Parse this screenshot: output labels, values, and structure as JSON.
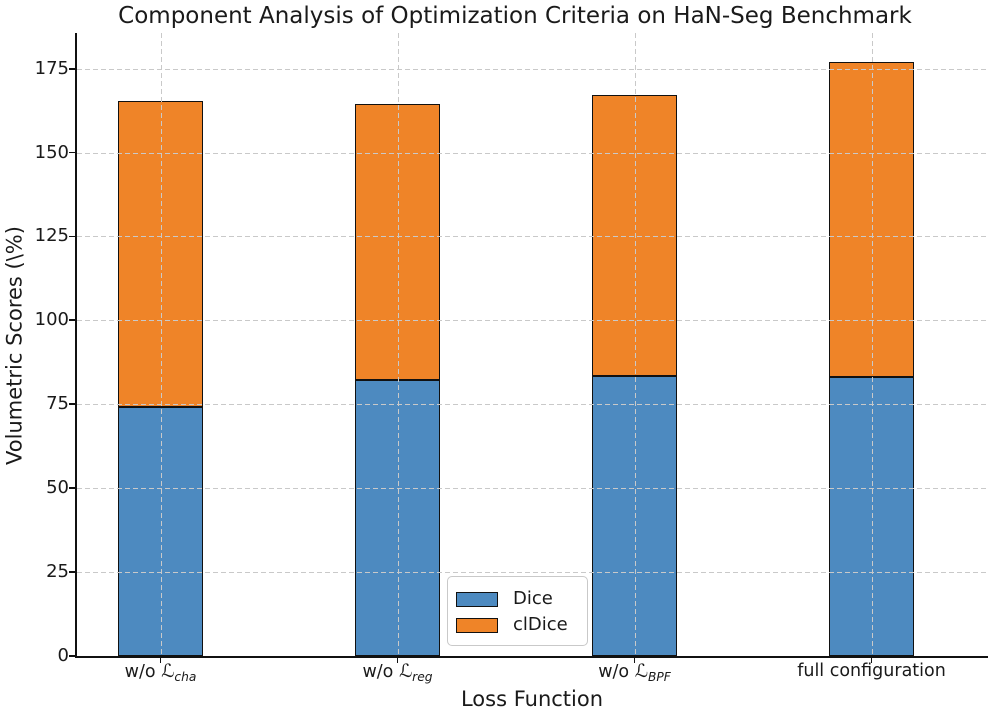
{
  "title": "Component Analysis of Optimization Criteria on HaN-Seg Benchmark",
  "chart_data": {
    "type": "bar",
    "stacked": true,
    "title": "Component Analysis of Optimization Criteria on HaN-Seg Benchmark",
    "xlabel": "Loss Function",
    "ylabel": "Volumetric Scores (\\%)",
    "categories": [
      {
        "label": "w/o ℒ_cha",
        "prefix": "w/o ",
        "mathcal": "ℒ",
        "subscript": "cha"
      },
      {
        "label": "w/o ℒ_reg",
        "prefix": "w/o ",
        "mathcal": "ℒ",
        "subscript": "reg"
      },
      {
        "label": "w/o ℒ_BPF",
        "prefix": "w/o ",
        "mathcal": "ℒ",
        "subscript": "BPF"
      },
      {
        "label": "full configuration",
        "prefix": "full configuration"
      }
    ],
    "series": [
      {
        "name": "Dice",
        "color": "#4d8ac0",
        "values": [
          74.1,
          82.2,
          83.4,
          83.2
        ]
      },
      {
        "name": "clDice",
        "color": "#ef8428",
        "values": [
          91.3,
          82.3,
          83.6,
          93.8
        ]
      }
    ],
    "stack_totals": [
      165.4,
      164.5,
      167.0,
      177.0
    ],
    "yticks": [
      0,
      25,
      50,
      75,
      100,
      125,
      150,
      175
    ],
    "ylim": [
      0,
      185.5
    ],
    "grid": {
      "style": "dashed",
      "color": "#c9c9c9",
      "above_bars": true
    },
    "bar_edge_color": "#111111",
    "legend": {
      "position": "inside-lower-center",
      "items": [
        "Dice",
        "clDice"
      ]
    }
  },
  "colors": {
    "background": "#ffffff",
    "text": "#1a1a1a",
    "dice_blue": "#4d8ac0",
    "cldice_orange": "#ef8428"
  }
}
